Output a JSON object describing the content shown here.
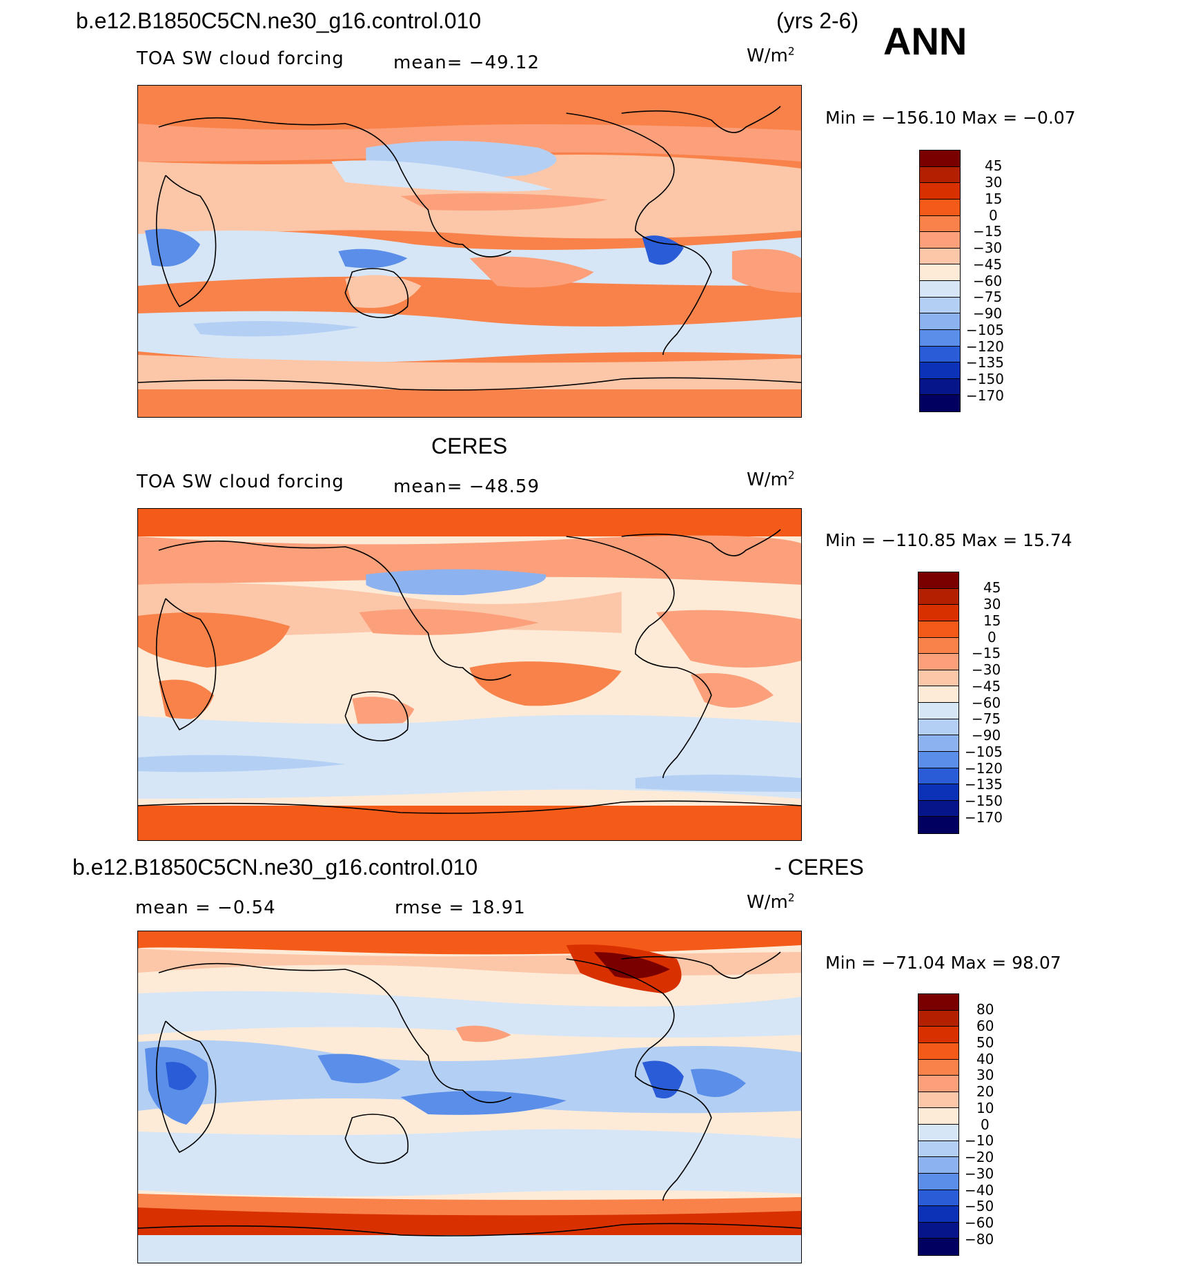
{
  "header": {
    "case_name": "b.e12.B1850C5CN.ne30_g16.control.010",
    "years": "(yrs 2-6)",
    "season": "ANN"
  },
  "panels": [
    {
      "id": "model",
      "title": "",
      "variable": "TOA SW cloud forcing",
      "stat1": "mean=  −49.12",
      "stat2": "",
      "units": "W/m",
      "units_exp": "2",
      "minmax": "Min  =  −156.10  Max  =   −0.07",
      "colorbar": {
        "labels": [
          "45",
          "30",
          "15",
          "0",
          "−15",
          "−30",
          "−45",
          "−60",
          "−75",
          "−90",
          "−105",
          "−120",
          "−135",
          "−150",
          "−170"
        ],
        "colors": [
          "#7a0000",
          "#b22000",
          "#d93000",
          "#f45a18",
          "#f8824a",
          "#fba07a",
          "#fcc7a8",
          "#fdebd8",
          "#d6e6f7",
          "#b4cff4",
          "#8db2f0",
          "#5a8ee8",
          "#2a5cd8",
          "#0c32b8",
          "#06168a",
          "#010060"
        ]
      }
    },
    {
      "id": "obs",
      "title": "CERES",
      "variable": "TOA SW cloud forcing",
      "stat1": "mean=  −48.59",
      "stat2": "",
      "units": "W/m",
      "units_exp": "2",
      "minmax": "Min  =  −110.85  Max  =   15.74",
      "colorbar": {
        "labels": [
          "45",
          "30",
          "15",
          "0",
          "−15",
          "−30",
          "−45",
          "−60",
          "−75",
          "−90",
          "−105",
          "−120",
          "−135",
          "−150",
          "−170"
        ],
        "colors": [
          "#7a0000",
          "#b22000",
          "#d93000",
          "#f45a18",
          "#f8824a",
          "#fba07a",
          "#fcc7a8",
          "#fdebd8",
          "#d6e6f7",
          "#b4cff4",
          "#8db2f0",
          "#5a8ee8",
          "#2a5cd8",
          "#0c32b8",
          "#06168a",
          "#010060"
        ]
      }
    },
    {
      "id": "diff",
      "title_left": "b.e12.B1850C5CN.ne30_g16.control.010",
      "title_right": "- CERES",
      "variable": "",
      "stat1": "mean =   −0.54",
      "stat2": "rmse =   18.91",
      "units": "W/m",
      "units_exp": "2",
      "minmax": "Min  =  −71.04  Max  =   98.07",
      "colorbar": {
        "labels": [
          "80",
          "60",
          "50",
          "40",
          "30",
          "20",
          "10",
          "0",
          "−10",
          "−20",
          "−30",
          "−40",
          "−50",
          "−60",
          "−80"
        ],
        "colors": [
          "#7a0000",
          "#b22000",
          "#d93000",
          "#f45a18",
          "#f8824a",
          "#fba07a",
          "#fcc7a8",
          "#fdebd8",
          "#d6e6f7",
          "#b4cff4",
          "#8db2f0",
          "#5a8ee8",
          "#2a5cd8",
          "#0c32b8",
          "#06168a",
          "#010060"
        ]
      }
    }
  ]
}
